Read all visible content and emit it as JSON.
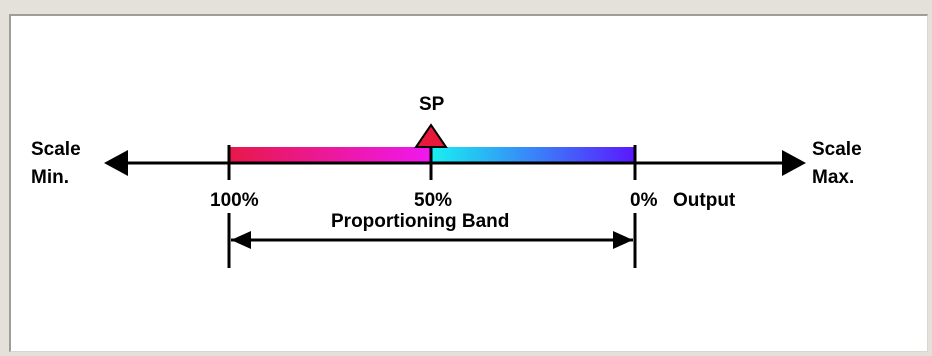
{
  "labels": {
    "sp": "SP",
    "scale_min_line1": "Scale",
    "scale_min_line2": "Min.",
    "scale_max_line1": "Scale",
    "scale_max_line2": "Max.",
    "pct_100": "100%",
    "pct_50": "50%",
    "pct_0": "0%",
    "output": "Output",
    "band": "Proportioning Band"
  },
  "colors": {
    "band_left_start": "#e8184a",
    "band_left_end": "#f018f0",
    "band_right_start": "#18f0f0",
    "band_right_end": "#5a18ff",
    "setpoint_marker": "#e8183a",
    "line": "#000000"
  }
}
